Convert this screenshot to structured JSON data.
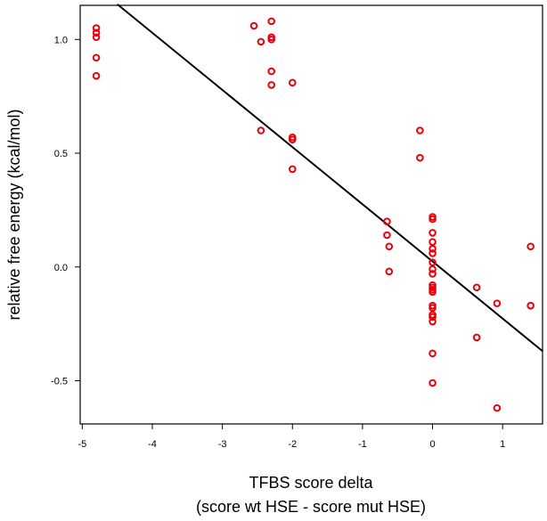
{
  "chart_data": {
    "type": "scatter",
    "title": "",
    "xlabel_lines": [
      "TFBS score delta",
      "(score wt HSE - score mut HSE)"
    ],
    "ylabel": "relative free energy (kcal/mol)",
    "xlim": [
      -5.03,
      1.57
    ],
    "ylim": [
      -0.69,
      1.15
    ],
    "x_ticks": [
      -5,
      -4,
      -3,
      -2,
      -1,
      0,
      1
    ],
    "y_ticks": [
      -0.5,
      0.0,
      0.5,
      1.0
    ],
    "y_tick_labels": [
      "-0.5",
      "0.0",
      "0.5",
      "1.0"
    ],
    "x_tick_labels": [
      "-5",
      "-4",
      "-3",
      "-2",
      "-1",
      "0",
      "1"
    ],
    "grid": false,
    "point_color": "#e8000b",
    "line_color": "#000000",
    "fit_line": {
      "x": [
        -4.5,
        1.57
      ],
      "y": [
        1.155,
        -0.37
      ]
    },
    "points": [
      {
        "x": -4.8,
        "y": 1.05
      },
      {
        "x": -4.8,
        "y": 1.03
      },
      {
        "x": -4.8,
        "y": 1.01
      },
      {
        "x": -4.8,
        "y": 0.92
      },
      {
        "x": -4.8,
        "y": 0.84
      },
      {
        "x": -2.55,
        "y": 1.06
      },
      {
        "x": -2.3,
        "y": 1.08
      },
      {
        "x": -2.45,
        "y": 0.99
      },
      {
        "x": -2.3,
        "y": 1.01
      },
      {
        "x": -2.3,
        "y": 1.0
      },
      {
        "x": -2.3,
        "y": 0.86
      },
      {
        "x": -2.3,
        "y": 0.8
      },
      {
        "x": -2.0,
        "y": 0.81
      },
      {
        "x": -2.45,
        "y": 0.6
      },
      {
        "x": -2.0,
        "y": 0.57
      },
      {
        "x": -2.0,
        "y": 0.56
      },
      {
        "x": -2.0,
        "y": 0.43
      },
      {
        "x": -0.65,
        "y": 0.2
      },
      {
        "x": -0.65,
        "y": 0.14
      },
      {
        "x": -0.62,
        "y": 0.09
      },
      {
        "x": -0.62,
        "y": -0.02
      },
      {
        "x": -0.18,
        "y": 0.6
      },
      {
        "x": -0.18,
        "y": 0.48
      },
      {
        "x": 0.0,
        "y": 0.22
      },
      {
        "x": 0.0,
        "y": 0.21
      },
      {
        "x": 0.0,
        "y": 0.15
      },
      {
        "x": 0.0,
        "y": 0.11
      },
      {
        "x": 0.0,
        "y": 0.08
      },
      {
        "x": 0.0,
        "y": 0.06
      },
      {
        "x": 0.0,
        "y": 0.02
      },
      {
        "x": 0.0,
        "y": -0.01
      },
      {
        "x": 0.0,
        "y": -0.03
      },
      {
        "x": 0.0,
        "y": -0.08
      },
      {
        "x": 0.0,
        "y": -0.09
      },
      {
        "x": 0.0,
        "y": -0.1
      },
      {
        "x": 0.0,
        "y": -0.11
      },
      {
        "x": 0.0,
        "y": -0.17
      },
      {
        "x": 0.0,
        "y": -0.18
      },
      {
        "x": 0.0,
        "y": -0.21
      },
      {
        "x": 0.0,
        "y": -0.22
      },
      {
        "x": 0.0,
        "y": -0.24
      },
      {
        "x": 0.0,
        "y": -0.38
      },
      {
        "x": 0.0,
        "y": -0.51
      },
      {
        "x": 0.63,
        "y": -0.09
      },
      {
        "x": 0.63,
        "y": -0.31
      },
      {
        "x": 0.92,
        "y": -0.16
      },
      {
        "x": 0.92,
        "y": -0.62
      },
      {
        "x": 1.4,
        "y": 0.09
      },
      {
        "x": 1.4,
        "y": -0.17
      }
    ]
  }
}
